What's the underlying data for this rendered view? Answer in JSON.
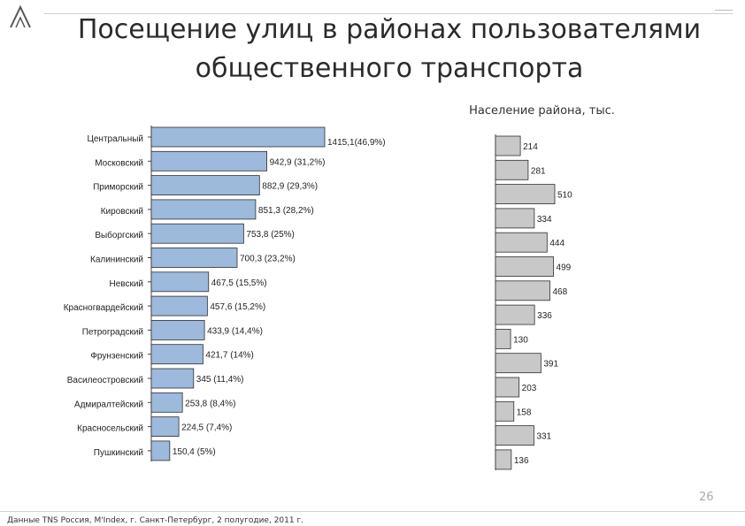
{
  "slide": {
    "title_line1": "Посещение улиц в районах пользователями",
    "title_line2": "общественного транспорта",
    "page_number": "26",
    "source": "Данные TNS Россия, M'Index, г. Санкт-Петербург, 2 полугодие, 2011 г."
  },
  "chart_data": [
    {
      "type": "bar",
      "orientation": "horizontal",
      "title": "",
      "categories": [
        "Центральный",
        "Московский",
        "Приморский",
        "Кировский",
        "Выборгский",
        "Калининский",
        "Невский",
        "Красногвардейский",
        "Петроградский",
        "Фрунзенский",
        "Василеостровский",
        "Адмиралтейский",
        "Красносельский",
        "Пушкинский"
      ],
      "values": [
        1415.1,
        942.9,
        882.9,
        851.3,
        753.8,
        700.3,
        467.5,
        457.6,
        433.9,
        421.7,
        345,
        253.8,
        224.5,
        150.4
      ],
      "data_labels": [
        "1415,1(46,9%)",
        "942,9 (31,2%)",
        "882,9 (29,3%)",
        "851,3 (28,2%)",
        "753,8 (25%)",
        "700,3 (23,2%)",
        "467,5 (15,5%)",
        "457,6 (15,2%)",
        "433,9 (14,4%)",
        "421,7 (14%)",
        "345 (11,4%)",
        "253,8 (8,4%)",
        "224,5 (7,4%)",
        "150,4 (5%)"
      ],
      "bar_color": "#9db9dc",
      "bar_stroke": "#2f2f2f",
      "grid": false
    },
    {
      "type": "bar",
      "orientation": "horizontal",
      "title": "Население района, тыс.",
      "values": [
        214,
        281,
        510,
        334,
        444,
        499,
        468,
        336,
        130,
        391,
        203,
        158,
        331,
        136
      ],
      "data_labels": [
        "214",
        "281",
        "510",
        "334",
        "444",
        "499",
        "468",
        "336",
        "130",
        "391",
        "203",
        "158",
        "331",
        "136"
      ],
      "bar_color": "#c8c8c8",
      "bar_stroke": "#2f2f2f",
      "grid": false
    }
  ]
}
